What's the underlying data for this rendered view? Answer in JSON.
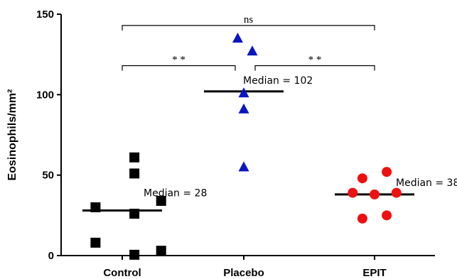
{
  "chart_data": {
    "type": "scatter",
    "title": "",
    "xlabel": "",
    "ylabel": "Eosinophils/mm²",
    "ylim": [
      0,
      150
    ],
    "yticks": [
      "0",
      "50",
      "100",
      "150"
    ],
    "grid": false,
    "categories": [
      "Control",
      "Placebo",
      "EPIT"
    ],
    "series": [
      {
        "category": "Control",
        "marker": "square",
        "color": "#000000",
        "points": [
          {
            "dx": 0.1,
            "y": 61
          },
          {
            "dx": 0.1,
            "y": 51
          },
          {
            "dx": 0.32,
            "y": 34
          },
          {
            "dx": -0.22,
            "y": 30
          },
          {
            "dx": 0.1,
            "y": 26
          },
          {
            "dx": -0.22,
            "y": 8
          },
          {
            "dx": 0.32,
            "y": 3
          },
          {
            "dx": 0.1,
            "y": 0.5
          }
        ],
        "median": 28,
        "median_label": "Median = 28"
      },
      {
        "category": "Placebo",
        "marker": "triangle",
        "color": "#0a16c0",
        "points": [
          {
            "dx": -0.05,
            "y": 135
          },
          {
            "dx": 0.07,
            "y": 127
          },
          {
            "dx": 0.0,
            "y": 101
          },
          {
            "dx": 0.0,
            "y": 91
          },
          {
            "dx": 0.0,
            "y": 55
          }
        ],
        "median": 102,
        "median_label": "Median = 102"
      },
      {
        "category": "EPIT",
        "marker": "circle",
        "color": "#ee1111",
        "points": [
          {
            "dx": -0.1,
            "y": 48
          },
          {
            "dx": 0.1,
            "y": 52
          },
          {
            "dx": -0.18,
            "y": 39
          },
          {
            "dx": 0.0,
            "y": 38
          },
          {
            "dx": 0.18,
            "y": 39
          },
          {
            "dx": -0.1,
            "y": 23
          },
          {
            "dx": 0.1,
            "y": 25
          }
        ],
        "median": 38,
        "median_label": "Median = 38"
      }
    ],
    "comparisons": [
      {
        "from": "Control",
        "to": "EPIT",
        "y": 143,
        "label": "ns"
      },
      {
        "from": "Control",
        "to": "Placebo",
        "y": 118,
        "label": "* *"
      },
      {
        "from": "Placebo",
        "to": "EPIT",
        "y": 118,
        "label": "* *"
      }
    ]
  }
}
